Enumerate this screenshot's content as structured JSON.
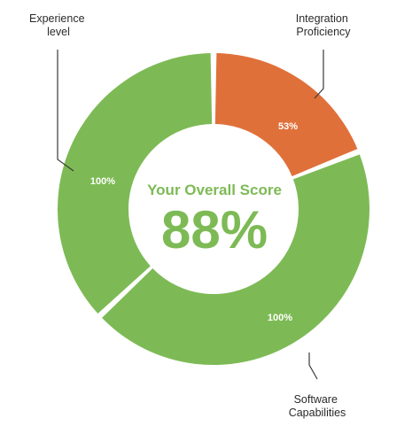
{
  "chart_data": {
    "type": "pie",
    "center_title": "Your Overall Score",
    "center_value": "88%",
    "slices": [
      {
        "category": "Integration Proficiency",
        "label": "53%",
        "value": 53,
        "share": 0.19,
        "color": "#e0703a"
      },
      {
        "category": "Software Capabilities",
        "label": "100%",
        "value": 100,
        "share": 0.44,
        "color": "#7dba55"
      },
      {
        "category": "Experience level",
        "label": "100%",
        "value": 100,
        "share": 0.37,
        "color": "#7dba55"
      }
    ],
    "category_labels": {
      "integration": [
        "Integration",
        "Proficiency"
      ],
      "software": [
        "Software",
        "Capabilities"
      ],
      "experience": [
        "Experience",
        "level"
      ]
    },
    "center_color": "#7dba55"
  }
}
